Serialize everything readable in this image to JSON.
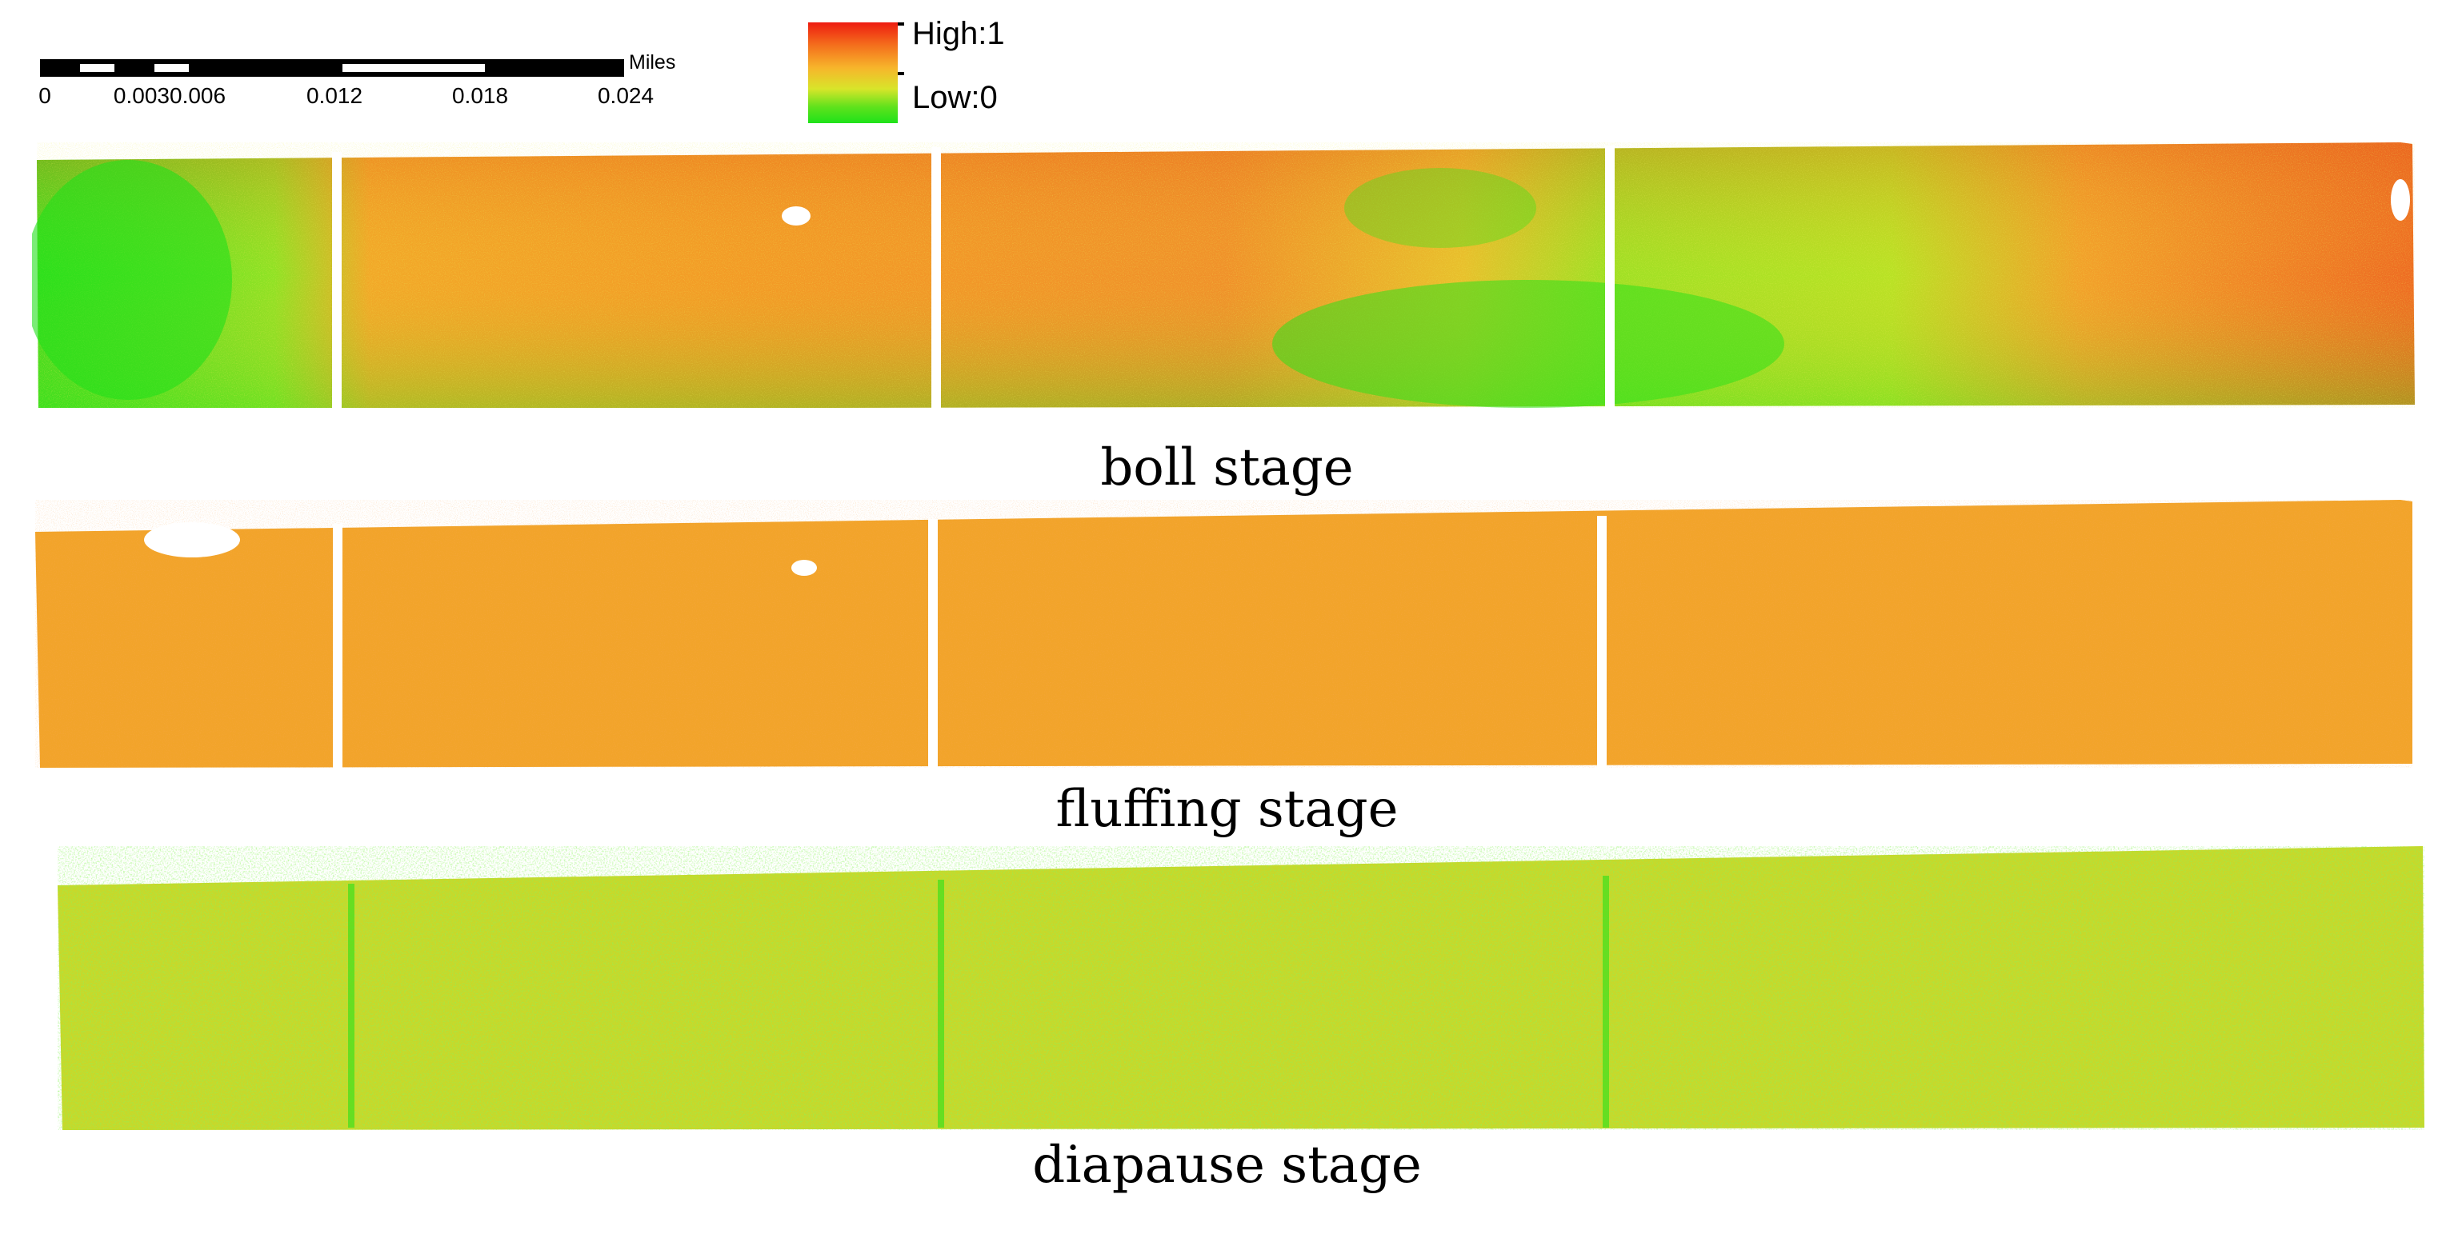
{
  "scale_bar": {
    "units": "Miles",
    "ticks": [
      "0",
      "0.0030.006",
      "0.012",
      "0.018",
      "0.024"
    ]
  },
  "legend": {
    "high_label": "High:1",
    "low_label": "Low:0",
    "high_color": "#ee1c10",
    "mid_color": "#f7b52b",
    "low_color": "#1ee21a"
  },
  "panels": [
    {
      "label": "boll stage"
    },
    {
      "label": "fluffing stage"
    },
    {
      "label": "diapause stage"
    }
  ]
}
